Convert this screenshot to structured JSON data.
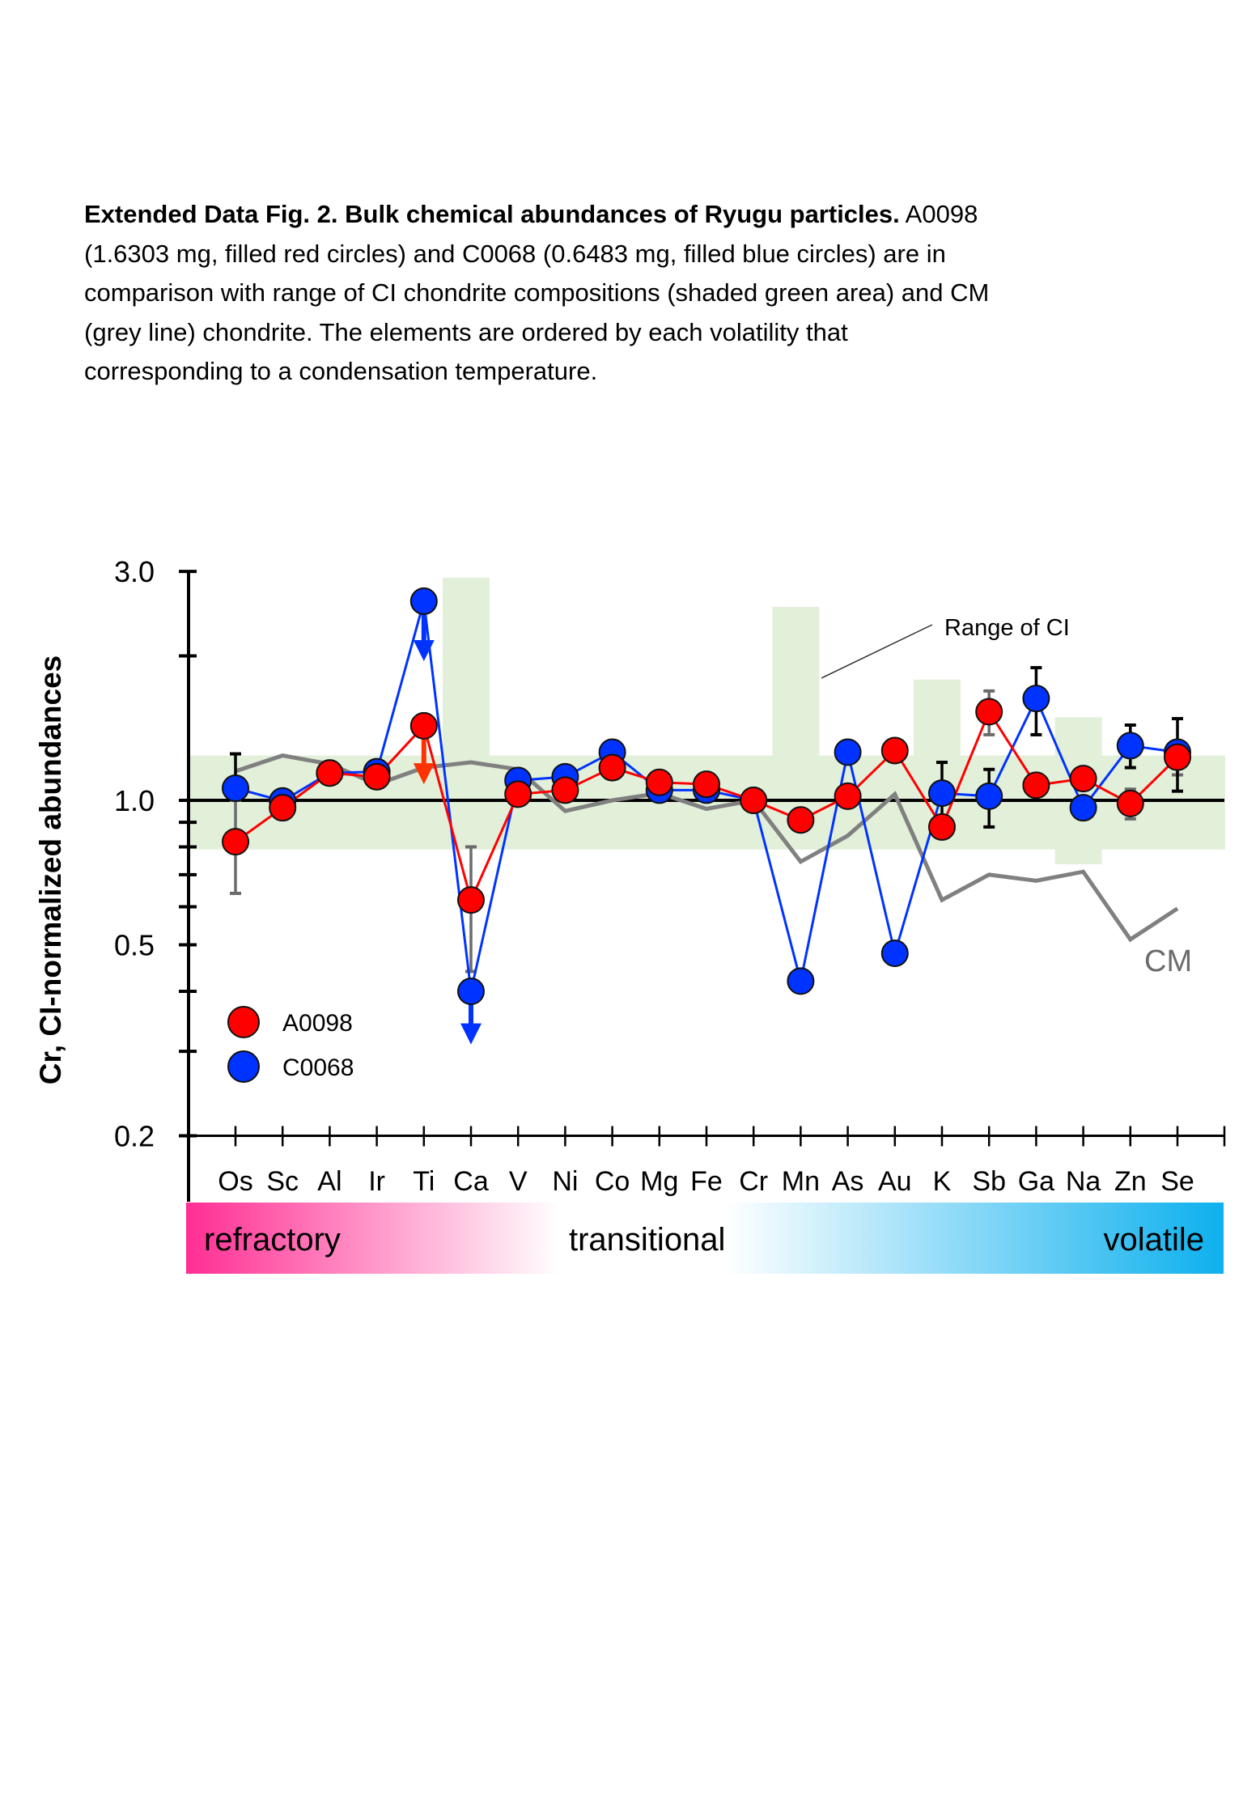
{
  "caption": {
    "title_bold": "Extended Data Fig. 2. Bulk chemical abundances of Ryugu particles.",
    "line1_rest": " A0098",
    "line2": "(1.6303 mg, filled red circles) and C0068 (0.6483 mg, filled blue circles) are in",
    "line3": "comparison with range of CI chondrite compositions (shaded green area) and CM",
    "line4": "(grey line) chondrite. The elements are ordered by each volatility that",
    "line5": "corresponding to a condensation temperature."
  },
  "chart_data": {
    "type": "line",
    "title": "",
    "xlabel": "",
    "ylabel": "Cr, CI-normalized abundances",
    "yscale": "log",
    "ylim": [
      0.2,
      3.0
    ],
    "y_ticks": [
      {
        "value": 3.0,
        "label": "3.0"
      },
      {
        "value": 1.0,
        "label": "1.0"
      },
      {
        "value": 0.5,
        "label": "0.5"
      },
      {
        "value": 0.2,
        "label": "0.2"
      }
    ],
    "y_minor_ticks": [
      2.0,
      0.9,
      0.8,
      0.7,
      0.6,
      0.4,
      0.3
    ],
    "reference_line": 1.0,
    "categories": [
      "Os",
      "Sc",
      "Al",
      "Ir",
      "Ti",
      "Ca",
      "V",
      "Ni",
      "Co",
      "Mg",
      "Fe",
      "Cr",
      "Mn",
      "As",
      "Au",
      "K",
      "Sb",
      "Ga",
      "Na",
      "Zn",
      "Se"
    ],
    "series": [
      {
        "name": "A0098",
        "color": "#ff0000",
        "marker": "filled-circle",
        "values": [
          0.82,
          0.965,
          1.14,
          1.12,
          1.43,
          0.62,
          1.03,
          1.05,
          1.17,
          1.09,
          1.08,
          1.0,
          0.91,
          1.02,
          1.27,
          0.88,
          1.53,
          1.075,
          1.11,
          0.985,
          1.23
        ],
        "error_bars": [
          {
            "category": "Os",
            "low": 0.64,
            "high": 1.0,
            "color": "#6b6b6b"
          },
          {
            "category": "Ca",
            "low": 0.44,
            "high": 0.8,
            "color": "#6b6b6b"
          },
          {
            "category": "Sb",
            "low": 1.37,
            "high": 1.69,
            "color": "#6b6b6b"
          },
          {
            "category": "Zn",
            "low": 0.915,
            "high": 1.055,
            "color": "#6b6b6b"
          },
          {
            "category": "Se",
            "low": 1.13,
            "high": 1.23,
            "color": "#6b6b6b"
          }
        ],
        "upper_limit_arrows": [
          {
            "category": "Ti",
            "from": 1.43,
            "to": 1.08,
            "color": "#ff3300"
          }
        ]
      },
      {
        "name": "C0068",
        "color": "#0033ff",
        "marker": "filled-circle",
        "values": [
          1.06,
          0.997,
          1.14,
          1.147,
          2.6,
          0.4,
          1.1,
          1.12,
          1.26,
          1.05,
          1.05,
          1.0,
          0.42,
          1.26,
          0.48,
          1.035,
          1.02,
          1.63,
          0.965,
          1.3,
          1.26
        ],
        "error_bars": [
          {
            "category": "Os",
            "low": 1.06,
            "high": 1.25,
            "color": "#000000"
          },
          {
            "category": "V",
            "low": 1.1,
            "high": 1.14,
            "color": "#000000"
          },
          {
            "category": "As",
            "low": 1.26,
            "high": 1.29,
            "color": "#000000"
          },
          {
            "category": "K",
            "low": 0.88,
            "high": 1.2,
            "color": "#000000"
          },
          {
            "category": "Sb",
            "low": 0.88,
            "high": 1.16,
            "color": "#000000"
          },
          {
            "category": "Ga",
            "low": 1.37,
            "high": 1.89,
            "color": "#000000"
          },
          {
            "category": "Zn",
            "low": 1.17,
            "high": 1.435,
            "color": "#000000"
          },
          {
            "category": "Se",
            "low": 1.045,
            "high": 1.48,
            "color": "#000000"
          }
        ],
        "upper_limit_arrows": [
          {
            "category": "Ti",
            "from": 2.6,
            "to": 1.95,
            "color": "#0033ff"
          },
          {
            "category": "Ca",
            "from": 0.4,
            "to": 0.31,
            "color": "#0033ff"
          }
        ]
      },
      {
        "name": "CM",
        "color": "#808080",
        "marker": "none",
        "values": [
          1.15,
          1.24,
          1.19,
          1.08,
          1.17,
          1.2,
          1.16,
          0.95,
          1.0,
          1.035,
          0.96,
          1.0,
          0.745,
          0.844,
          1.03,
          0.62,
          0.7,
          0.68,
          0.71,
          0.513,
          0.595
        ]
      }
    ],
    "ci_range": {
      "label": "Range of CI",
      "color": "#e2efd9",
      "default": {
        "low": 0.79,
        "high": 1.24
      },
      "extended": [
        {
          "category": "Ca",
          "low": 0.79,
          "high": 2.91
        },
        {
          "category": "Mn",
          "low": 0.79,
          "high": 2.53
        },
        {
          "category": "K",
          "low": 0.79,
          "high": 1.785
        },
        {
          "category": "Na",
          "low": 0.736,
          "high": 1.49
        }
      ]
    },
    "legend": {
      "placement": "lower-left",
      "entries": [
        {
          "label": "A0098",
          "color": "#ff0000"
        },
        {
          "label": "C0068",
          "color": "#0033ff"
        }
      ]
    },
    "annotations": [
      {
        "text": "Range of CI",
        "target": "CI range band (Mn)"
      },
      {
        "text": "CM",
        "target": "CM line end",
        "color": "#6b6b6b"
      }
    ],
    "volatility_bar": {
      "labels": [
        "refractory",
        "transitional",
        "volatile"
      ],
      "colors": {
        "refractory": "#ff2e93",
        "transitional": "#ffffff",
        "volatile": "#0db0ee"
      }
    }
  }
}
